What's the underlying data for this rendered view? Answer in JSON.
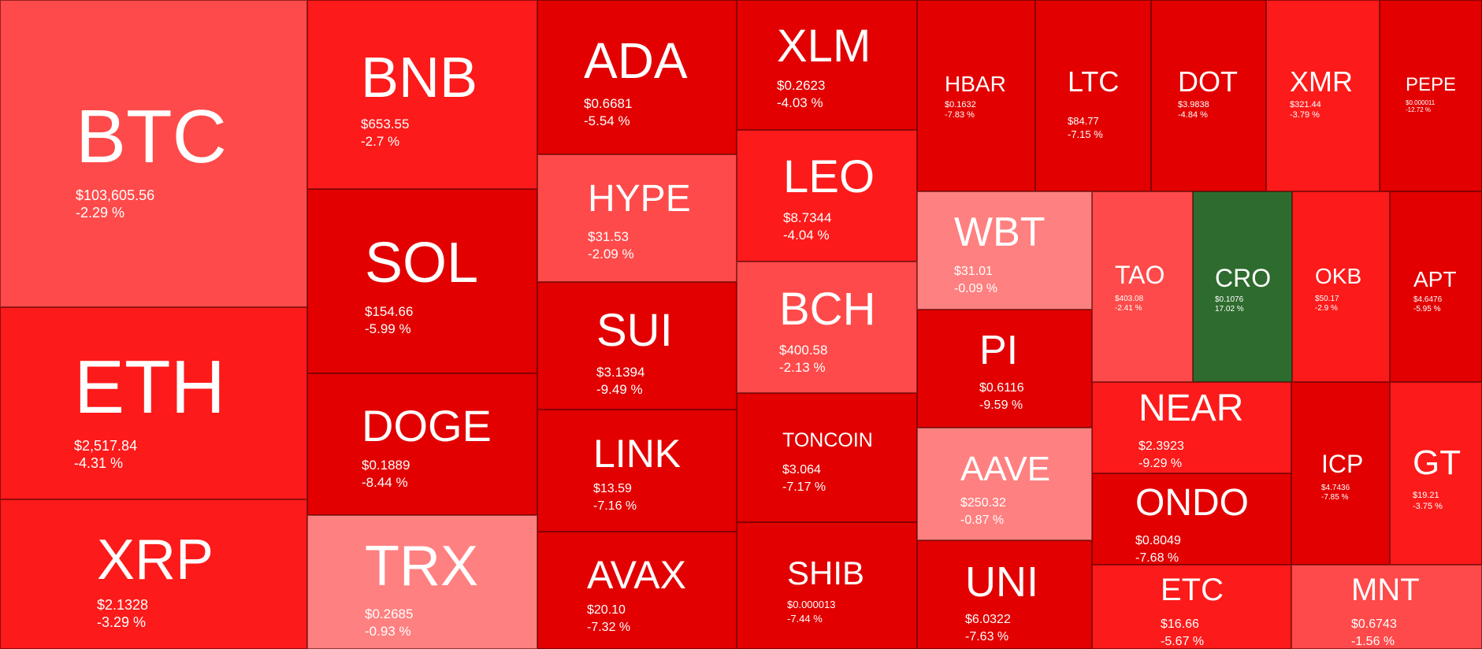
{
  "chart_data": {
    "type": "treemap",
    "title": "",
    "colors": {
      "deep_red": "#e20000",
      "red": "#fc1a1a",
      "light_red": "#fe4a4a",
      "pale_red": "#ff8080",
      "green": "#2e6b2e",
      "text": "#ffffff"
    },
    "tiles": [
      {
        "symbol": "BTC",
        "price": "$103,605.56",
        "change": "-2.29 %",
        "change_pct": -2.29
      },
      {
        "symbol": "ETH",
        "price": "$2,517.84",
        "change": "-4.31 %",
        "change_pct": -4.31
      },
      {
        "symbol": "XRP",
        "price": "$2.1328",
        "change": "-3.29 %",
        "change_pct": -3.29
      },
      {
        "symbol": "BNB",
        "price": "$653.55",
        "change": "-2.7 %",
        "change_pct": -2.7
      },
      {
        "symbol": "SOL",
        "price": "$154.66",
        "change": "-5.99 %",
        "change_pct": -5.99
      },
      {
        "symbol": "DOGE",
        "price": "$0.1889",
        "change": "-8.44 %",
        "change_pct": -8.44
      },
      {
        "symbol": "TRX",
        "price": "$0.2685",
        "change": "-0.93 %",
        "change_pct": -0.93
      },
      {
        "symbol": "ADA",
        "price": "$0.6681",
        "change": "-5.54 %",
        "change_pct": -5.54
      },
      {
        "symbol": "HYPE",
        "price": "$31.53",
        "change": "-2.09 %",
        "change_pct": -2.09
      },
      {
        "symbol": "SUI",
        "price": "$3.1394",
        "change": "-9.49 %",
        "change_pct": -9.49
      },
      {
        "symbol": "LINK",
        "price": "$13.59",
        "change": "-7.16 %",
        "change_pct": -7.16
      },
      {
        "symbol": "AVAX",
        "price": "$20.10",
        "change": "-7.32 %",
        "change_pct": -7.32
      },
      {
        "symbol": "XLM",
        "price": "$0.2623",
        "change": "-4.03 %",
        "change_pct": -4.03
      },
      {
        "symbol": "LEO",
        "price": "$8.7344",
        "change": "-4.04 %",
        "change_pct": -4.04
      },
      {
        "symbol": "BCH",
        "price": "$400.58",
        "change": "-2.13 %",
        "change_pct": -2.13
      },
      {
        "symbol": "TONCOIN",
        "price": "$3.064",
        "change": "-7.17 %",
        "change_pct": -7.17
      },
      {
        "symbol": "SHIB",
        "price": "$0.000013",
        "change": "-7.44 %",
        "change_pct": -7.44
      },
      {
        "symbol": "HBAR",
        "price": "$0.1632",
        "change": "-7.83 %",
        "change_pct": -7.83
      },
      {
        "symbol": "LTC",
        "price": "$84.77",
        "change": "-7.15 %",
        "change_pct": -7.15
      },
      {
        "symbol": "DOT",
        "price": "$3.9838",
        "change": "-4.84 %",
        "change_pct": -4.84
      },
      {
        "symbol": "XMR",
        "price": "$321.44",
        "change": "-3.79 %",
        "change_pct": -3.79
      },
      {
        "symbol": "PEPE",
        "price": "$0.000011",
        "change": "-12.72 %",
        "change_pct": -12.72
      },
      {
        "symbol": "WBT",
        "price": "$31.01",
        "change": "-0.09 %",
        "change_pct": -0.09
      },
      {
        "symbol": "PI",
        "price": "$0.6116",
        "change": "-9.59 %",
        "change_pct": -9.59
      },
      {
        "symbol": "AAVE",
        "price": "$250.32",
        "change": "-0.87 %",
        "change_pct": -0.87
      },
      {
        "symbol": "UNI",
        "price": "$6.0322",
        "change": "-7.63 %",
        "change_pct": -7.63
      },
      {
        "symbol": "TAO",
        "price": "$403.08",
        "change": "-2.41 %",
        "change_pct": -2.41
      },
      {
        "symbol": "CRO",
        "price": "$0.1076",
        "change": "17.02 %",
        "change_pct": 17.02
      },
      {
        "symbol": "OKB",
        "price": "$50.17",
        "change": "-2.9 %",
        "change_pct": -2.9
      },
      {
        "symbol": "APT",
        "price": "$4.6476",
        "change": "-5.95 %",
        "change_pct": -5.95
      },
      {
        "symbol": "NEAR",
        "price": "$2.3923",
        "change": "-9.29 %",
        "change_pct": -9.29
      },
      {
        "symbol": "ONDO",
        "price": "$0.8049",
        "change": "-7.68 %",
        "change_pct": -7.68
      },
      {
        "symbol": "ETC",
        "price": "$16.66",
        "change": "-5.67 %",
        "change_pct": -5.67
      },
      {
        "symbol": "ICP",
        "price": "$4.7436",
        "change": "-7.85 %",
        "change_pct": -7.85
      },
      {
        "symbol": "GT",
        "price": "$19.21",
        "change": "-3.75 %",
        "change_pct": -3.75
      },
      {
        "symbol": "MNT",
        "price": "$0.6743",
        "change": "-1.56 %",
        "change_pct": -1.56
      }
    ]
  }
}
